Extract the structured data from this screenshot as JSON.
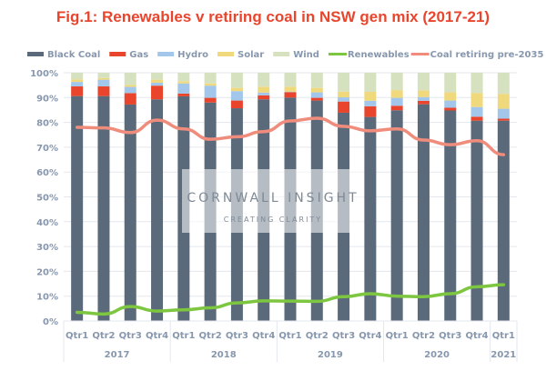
{
  "chart_data": {
    "type": "bar",
    "stacked": true,
    "title": "Fig.1: Renewables v retiring coal in NSW gen mix (2017-21)",
    "categories": [
      "Qtr1",
      "Qtr2",
      "Qtr3",
      "Qtr4",
      "Qtr1",
      "Qtr2",
      "Qtr3",
      "Qtr4",
      "Qtr1",
      "Qtr2",
      "Qtr3",
      "Qtr4",
      "Qtr1",
      "Qtr2",
      "Qtr3",
      "Qtr4",
      "Qtr1"
    ],
    "year_groups": [
      {
        "label": "2017",
        "count": 4
      },
      {
        "label": "2018",
        "count": 4
      },
      {
        "label": "2019",
        "count": 4
      },
      {
        "label": "2020",
        "count": 4
      },
      {
        "label": "2021",
        "count": 1
      }
    ],
    "ylim": [
      0,
      100
    ],
    "yticks": [
      "0%",
      "10%",
      "20%",
      "30%",
      "40%",
      "50%",
      "60%",
      "70%",
      "80%",
      "90%",
      "100%"
    ],
    "grid": true,
    "legend_placement": "top",
    "series": [
      {
        "name": "Black Coal",
        "kind": "bar",
        "color": "#5b6a7b",
        "values": [
          90.6,
          90.6,
          87.2,
          89.3,
          90.5,
          88.0,
          85.7,
          89.3,
          90.0,
          88.8,
          83.9,
          82.2,
          84.9,
          87.3,
          84.8,
          80.7,
          80.7
        ]
      },
      {
        "name": "Gas",
        "kind": "bar",
        "color": "#e9452d",
        "values": [
          3.9,
          3.9,
          4.6,
          5.5,
          1.1,
          1.9,
          3.1,
          1.6,
          2.2,
          1.1,
          4.5,
          4.3,
          1.8,
          1.4,
          1.1,
          1.6,
          0.8
        ]
      },
      {
        "name": "Hydro",
        "kind": "bar",
        "color": "#a3c7ea",
        "values": [
          1.8,
          2.7,
          2.5,
          1.2,
          4.1,
          4.9,
          3.8,
          1.1,
          0.2,
          2.2,
          1.7,
          2.2,
          3.2,
          1.5,
          2.9,
          3.9,
          4.0
        ]
      },
      {
        "name": "Solar",
        "kind": "bar",
        "color": "#f0d87c",
        "values": [
          1.0,
          0.7,
          0.8,
          1.2,
          0.9,
          0.9,
          1.3,
          2.4,
          2.0,
          1.8,
          2.3,
          3.6,
          3.1,
          2.7,
          3.3,
          5.6,
          6.0
        ]
      },
      {
        "name": "Wind",
        "kind": "bar",
        "color": "#d6e1c0",
        "values": [
          2.7,
          2.1,
          4.9,
          2.8,
          3.4,
          4.3,
          6.1,
          5.6,
          5.6,
          6.1,
          7.6,
          7.7,
          7.0,
          7.1,
          7.9,
          8.2,
          8.5
        ]
      },
      {
        "name": "Renewables",
        "kind": "line",
        "color": "#7dc63f",
        "values": [
          3.5,
          2.8,
          5.8,
          4.0,
          4.5,
          5.3,
          7.3,
          8.1,
          8.0,
          7.9,
          9.8,
          11.0,
          10.0,
          9.8,
          11.0,
          13.8,
          14.6
        ]
      },
      {
        "name": "Coal retiring pre-2035",
        "kind": "line",
        "color": "#ef8c7c",
        "values": [
          78.0,
          77.8,
          75.9,
          80.9,
          77.4,
          73.2,
          74.2,
          76.3,
          80.6,
          81.7,
          78.4,
          76.6,
          77.4,
          72.9,
          71.0,
          72.6,
          67.0
        ]
      }
    ]
  },
  "watermark": {
    "line1": "CORNWALL INSIGHT",
    "line2": "CREATING CLARITY"
  },
  "colors": {
    "title": "#e9452d",
    "axis_text": "#8797ad",
    "grid": "#e3e7ee"
  }
}
